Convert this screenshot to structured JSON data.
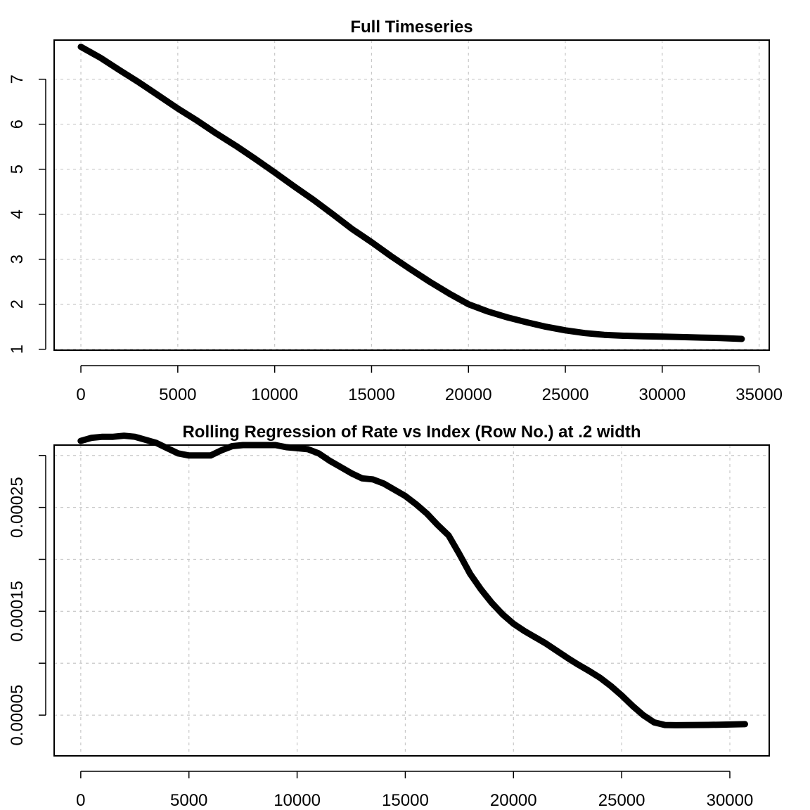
{
  "chart_data": [
    {
      "type": "line",
      "title": "Full Timeseries",
      "xlabel": "",
      "ylabel": "",
      "xlim": [
        -1380,
        35520
      ],
      "ylim": [
        0.98,
        7.87
      ],
      "x_ticks": [
        0,
        5000,
        10000,
        15000,
        20000,
        25000,
        30000,
        35000
      ],
      "x_tick_labels": [
        "0",
        "5000",
        "10000",
        "15000",
        "20000",
        "25000",
        "30000",
        "35000"
      ],
      "y_ticks": [
        1,
        2,
        3,
        4,
        5,
        6,
        7
      ],
      "y_tick_labels": [
        "1",
        "2",
        "3",
        "4",
        "5",
        "6",
        "7"
      ],
      "grid": true,
      "series": [
        {
          "x": [
            0,
            1000,
            2000,
            3000,
            4000,
            5000,
            6000,
            7000,
            8000,
            9000,
            10000,
            11000,
            12000,
            13000,
            14000,
            15000,
            16000,
            17000,
            18000,
            19000,
            20000,
            21000,
            22000,
            23000,
            24000,
            25000,
            26000,
            27000,
            28000,
            29000,
            30000,
            31000,
            32000,
            33000,
            34100
          ],
          "y": [
            7.72,
            7.48,
            7.2,
            6.93,
            6.64,
            6.35,
            6.08,
            5.79,
            5.52,
            5.23,
            4.93,
            4.62,
            4.32,
            4.0,
            3.67,
            3.38,
            3.07,
            2.78,
            2.5,
            2.24,
            2.0,
            1.84,
            1.71,
            1.6,
            1.5,
            1.42,
            1.36,
            1.32,
            1.3,
            1.29,
            1.28,
            1.27,
            1.26,
            1.25,
            1.23
          ]
        }
      ]
    },
    {
      "type": "line",
      "title": "Rolling Regression of Rate vs Index (Row No.) at .2 width",
      "xlabel": "",
      "ylabel": "",
      "xlim": [
        -1230,
        31820
      ],
      "ylim": [
        1.08e-05,
        0.00031
      ],
      "x_ticks": [
        0,
        5000,
        10000,
        15000,
        20000,
        25000,
        30000
      ],
      "x_tick_labels": [
        "0",
        "5000",
        "10000",
        "15000",
        "20000",
        "25000",
        "30000"
      ],
      "y_ticks": [
        5e-05,
        0.0001,
        0.00015,
        0.0002,
        0.00025,
        0.0003
      ],
      "y_tick_labels": [
        "0.00005",
        "",
        "0.00015",
        "",
        "0.00025",
        ""
      ],
      "grid": true,
      "series": [
        {
          "x": [
            0,
            500,
            1000,
            1500,
            2000,
            2500,
            3000,
            3500,
            4000,
            4500,
            5000,
            5500,
            6000,
            6500,
            7000,
            7500,
            8000,
            8500,
            9000,
            9500,
            10000,
            10500,
            11000,
            11500,
            12000,
            12500,
            13000,
            13500,
            14000,
            14500,
            15000,
            15500,
            16000,
            16500,
            17000,
            17500,
            18000,
            18500,
            19000,
            19500,
            20000,
            20500,
            21000,
            21500,
            22000,
            22500,
            23000,
            23500,
            24000,
            24500,
            25000,
            25500,
            26000,
            26500,
            27000,
            27500,
            28000,
            28500,
            29000,
            29500,
            30000,
            30700
          ],
          "y": [
            0.000314,
            0.000317,
            0.000318,
            0.000318,
            0.000319,
            0.000318,
            0.000315,
            0.000312,
            0.000307,
            0.000302,
            0.0003,
            0.0003,
            0.0003,
            0.000305,
            0.000309,
            0.00031,
            0.00031,
            0.00031,
            0.00031,
            0.000308,
            0.000307,
            0.000306,
            0.000302,
            0.000295,
            0.000289,
            0.000283,
            0.000278,
            0.000277,
            0.000273,
            0.000267,
            0.000261,
            0.000253,
            0.000244,
            0.000233,
            0.000223,
            0.000205,
            0.000186,
            0.000171,
            0.000158,
            0.000147,
            0.000138,
            0.000131,
            0.000125,
            0.000119,
            0.000112,
            0.000105,
            9.85e-05,
            9.25e-05,
            8.6e-05,
            7.8e-05,
            6.9e-05,
            5.9e-05,
            5e-05,
            4.3e-05,
            4.05e-05,
            4.03e-05,
            4.04e-05,
            4.05e-05,
            4.06e-05,
            4.08e-05,
            4.1e-05,
            4.13e-05
          ]
        }
      ]
    }
  ]
}
